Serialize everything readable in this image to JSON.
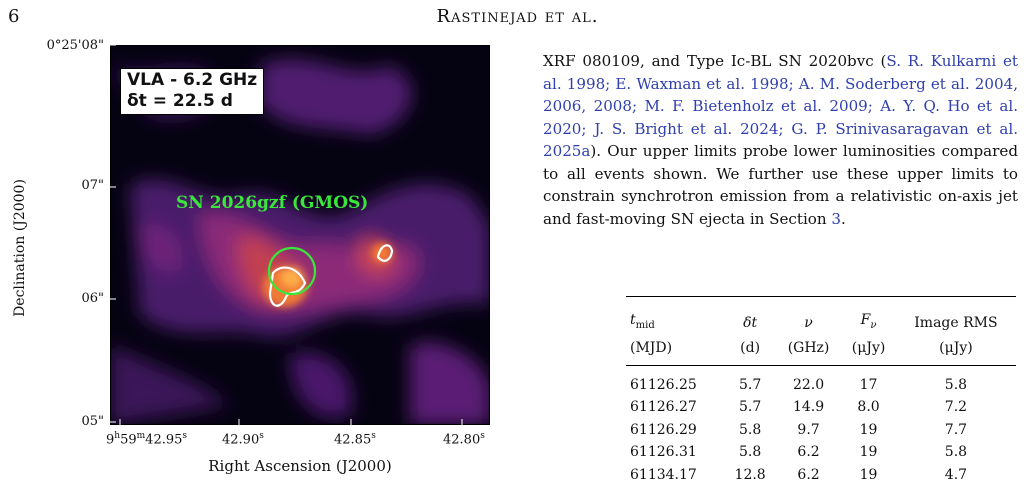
{
  "header": {
    "page_number": "6",
    "running_head": "Rastinejad et al."
  },
  "figure": {
    "inset_label_line1": "VLA - 6.2 GHz",
    "inset_label_line2": "δt = 22.5 d",
    "source_label": "SN 2026gzf (GMOS)",
    "y_axis_label": "Declination (J2000)",
    "x_axis_label": "Right Ascension (J2000)",
    "y_ticks": [
      "0°25'08\"",
      "07\"",
      "06\"",
      "05\""
    ],
    "x_ticks": [
      "9h59m42.95s",
      "42.90s",
      "42.85s",
      "42.80s"
    ],
    "colors": {
      "circle": "#39e73a",
      "contour": "#ffffff"
    }
  },
  "paragraph": {
    "lead": "XRF 080109, and Type Ic-BL SN 2020bvc (",
    "citations": "S. R. Kulkarni et al. 1998; E. Waxman et al. 1998; A. M. Soderberg et al. 2004, 2006, 2008; M. F. Bietenholz et al. 2009; A. Y. Q. Ho et al. 2020; J. S. Bright et al. 2024; G. P. Srinivasaragavan et al. 2025a",
    "after_cite": "). Our upper limits probe lower luminosities compared to all events shown. We further use these upper limits to constrain synchrotron emission from a relativistic on-axis jet and fast-moving SN ejecta in Section ",
    "section_ref": "3",
    "tail": "."
  },
  "table": {
    "headers": [
      "t_mid",
      "δt",
      "ν",
      "F_ν",
      "Image RMS"
    ],
    "units": [
      "(MJD)",
      "(d)",
      "(GHz)",
      "(μJy)",
      "(μJy)"
    ],
    "rows": [
      [
        "61126.25",
        "5.7",
        "22.0",
        "17",
        "5.8"
      ],
      [
        "61126.27",
        "5.7",
        "14.9",
        "8.0",
        "7.2"
      ],
      [
        "61126.29",
        "5.8",
        "9.7",
        "19",
        "7.7"
      ],
      [
        "61126.31",
        "5.8",
        "6.2",
        "19",
        "5.8"
      ],
      [
        "61134.17",
        "12.8",
        "6.2",
        "19",
        "4.7"
      ]
    ]
  }
}
